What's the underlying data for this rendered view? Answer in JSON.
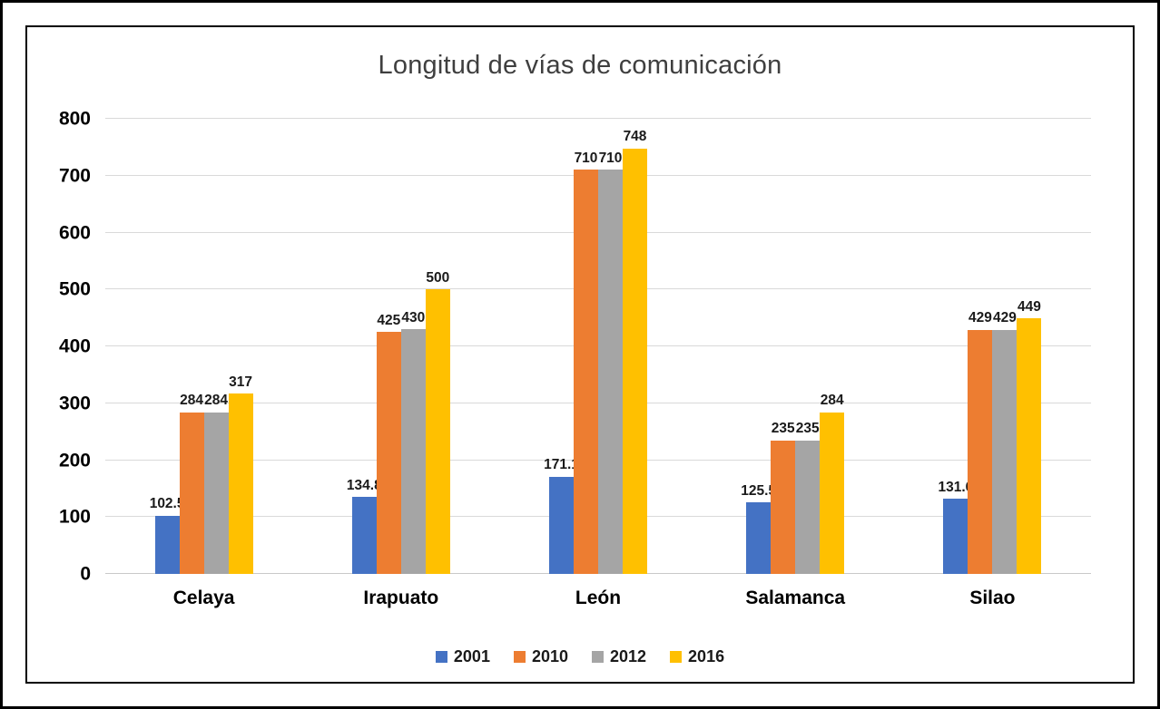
{
  "window": {
    "background_color": "#ffffff",
    "outer_border_color": "#000000",
    "chart_border_color": "#000000"
  },
  "chart_data": {
    "type": "bar",
    "title": "Longitud de vías de comunicación",
    "categories": [
      "Celaya",
      "Irapuato",
      "León",
      "Salamanca",
      "Silao"
    ],
    "series": [
      {
        "name": "2001",
        "color": "#4472C4",
        "values": [
          102.5,
          134.8,
          171.1,
          125.5,
          131.6
        ]
      },
      {
        "name": "2010",
        "color": "#ED7D31",
        "values": [
          284,
          425,
          710,
          235,
          429
        ]
      },
      {
        "name": "2012",
        "color": "#A5A5A5",
        "values": [
          284,
          430,
          710,
          235,
          429
        ]
      },
      {
        "name": "2016",
        "color": "#FFC000",
        "values": [
          317,
          500,
          748,
          284,
          449
        ]
      }
    ],
    "xlabel": "",
    "ylabel": "",
    "ylim": [
      0,
      800
    ],
    "ytick_step": 100,
    "ytick_labels": [
      "0",
      "100",
      "200",
      "300",
      "400",
      "500",
      "600",
      "700",
      "800"
    ],
    "grid": "horizontal",
    "gridline_color": "#d9d9d9",
    "legend_position": "bottom",
    "data_labels": "outside-end"
  }
}
